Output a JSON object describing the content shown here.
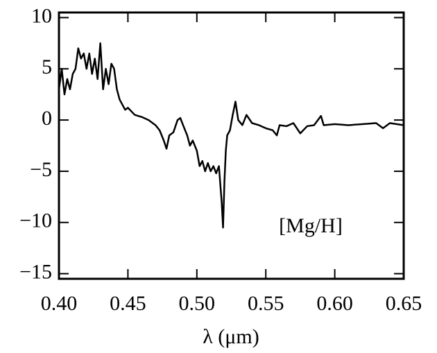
{
  "chart_data": {
    "type": "line",
    "x": [
      0.4,
      0.402,
      0.404,
      0.406,
      0.408,
      0.41,
      0.412,
      0.414,
      0.416,
      0.418,
      0.42,
      0.422,
      0.424,
      0.426,
      0.428,
      0.43,
      0.432,
      0.434,
      0.436,
      0.438,
      0.44,
      0.442,
      0.444,
      0.446,
      0.448,
      0.45,
      0.455,
      0.46,
      0.465,
      0.47,
      0.473,
      0.476,
      0.478,
      0.48,
      0.483,
      0.486,
      0.488,
      0.49,
      0.493,
      0.495,
      0.497,
      0.5,
      0.502,
      0.504,
      0.506,
      0.508,
      0.51,
      0.512,
      0.514,
      0.516,
      0.518,
      0.519,
      0.52,
      0.521,
      0.522,
      0.524,
      0.526,
      0.528,
      0.53,
      0.533,
      0.536,
      0.54,
      0.545,
      0.55,
      0.555,
      0.558,
      0.56,
      0.565,
      0.57,
      0.575,
      0.58,
      0.585,
      0.59,
      0.592,
      0.6,
      0.61,
      0.62,
      0.63,
      0.635,
      0.64,
      0.65
    ],
    "values": [
      3,
      5,
      2.5,
      4,
      3,
      4.5,
      5,
      7,
      6,
      6.5,
      5,
      6.5,
      4.5,
      6,
      4,
      7.5,
      3,
      5,
      3.5,
      5.5,
      5,
      3,
      2,
      1.5,
      1,
      1.2,
      0.5,
      0.3,
      0,
      -0.5,
      -1,
      -2,
      -2.8,
      -1.5,
      -1.2,
      0,
      0.2,
      -0.5,
      -1.5,
      -2.5,
      -2,
      -3,
      -4.5,
      -4,
      -5,
      -4.2,
      -5,
      -4.5,
      -5.2,
      -4.5,
      -8,
      -10.5,
      -6,
      -3,
      -1.5,
      -1,
      0.5,
      1.8,
      0,
      -0.5,
      0.5,
      -0.3,
      -0.5,
      -0.8,
      -1,
      -1.5,
      -0.5,
      -0.6,
      -0.3,
      -1.3,
      -0.6,
      -0.5,
      0.4,
      -0.5,
      -0.4,
      -0.5,
      -0.4,
      -0.3,
      -0.8,
      -0.3,
      -0.5
    ],
    "color": "#000000",
    "xlabel": "λ (μm)",
    "annotation": "[Mg/H]",
    "xlim": [
      0.4,
      0.65
    ],
    "xticks": [
      {
        "value": 0.4,
        "label": "0.40"
      },
      {
        "value": 0.45,
        "label": "0.45"
      },
      {
        "value": 0.5,
        "label": "0.50"
      },
      {
        "value": 0.55,
        "label": "0.55"
      },
      {
        "value": 0.6,
        "label": "0.60"
      },
      {
        "value": 0.65,
        "label": "0.65"
      }
    ],
    "ylim": [
      -15.5,
      10.5
    ],
    "yticks": [
      10,
      5,
      0,
      {
        "value": -5,
        "label": "−5"
      },
      {
        "value": -10,
        "label": "−10"
      },
      {
        "value": -15,
        "label": "−15"
      }
    ]
  }
}
